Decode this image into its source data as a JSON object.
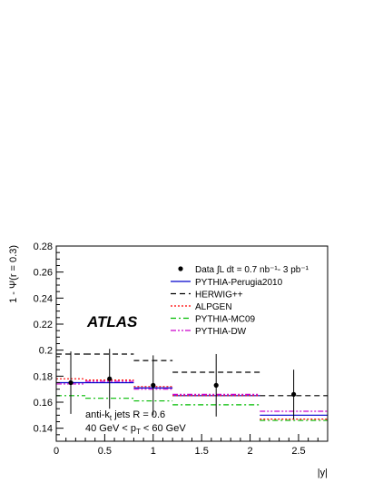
{
  "chart_data": {
    "type": "line",
    "logo": "ATLAS",
    "xlabel": "|y|",
    "ylabel": "1 - Ψ(r = 0.3)",
    "xlim": [
      0,
      2.8
    ],
    "ylim": [
      0.13,
      0.28
    ],
    "x_ticks": [
      "0",
      "0.5",
      "1",
      "1.5",
      "2",
      "2.5"
    ],
    "y_ticks": [
      "0.14",
      "0.16",
      "0.18",
      "0.2",
      "0.22",
      "0.24",
      "0.26",
      "0.28"
    ],
    "bin_edges": [
      0,
      0.3,
      0.8,
      1.2,
      2.1,
      2.8
    ],
    "annotations": [
      "anti-k",
      "t",
      " jets R = 0.6",
      "40 GeV < p",
      "T",
      " < 60 GeV"
    ],
    "legend_position": "top-right",
    "data_points": {
      "name": "Data ∫L dt = 0.7 nb⁻¹- 3 pb⁻¹",
      "x": [
        0.15,
        0.55,
        1.0,
        1.65,
        2.45
      ],
      "y": [
        0.175,
        0.178,
        0.173,
        0.173,
        0.166
      ],
      "err": [
        0.024,
        0.023,
        0.023,
        0.024,
        0.019
      ]
    },
    "series": [
      {
        "name": "PYTHIA-Perugia2010",
        "color": "#0000cc",
        "dash": "solid",
        "values": [
          0.175,
          0.175,
          0.171,
          0.165,
          0.15
        ]
      },
      {
        "name": "HERWIG++",
        "color": "#000000",
        "dash": "6,4",
        "values": [
          0.197,
          0.197,
          0.192,
          0.183,
          0.165
        ]
      },
      {
        "name": "ALPGEN",
        "color": "#ff0000",
        "dash": "2,2",
        "values": [
          0.178,
          0.177,
          0.172,
          0.165,
          0.147
        ]
      },
      {
        "name": "PYTHIA-MC09",
        "color": "#00bb00",
        "dash": "6,3,2,3",
        "values": [
          0.165,
          0.163,
          0.161,
          0.158,
          0.146
        ]
      },
      {
        "name": "PYTHIA-DW",
        "color": "#cc00cc",
        "dash": "6,2,2,2,2,2",
        "values": [
          0.174,
          0.176,
          0.17,
          0.166,
          0.153
        ]
      }
    ]
  }
}
